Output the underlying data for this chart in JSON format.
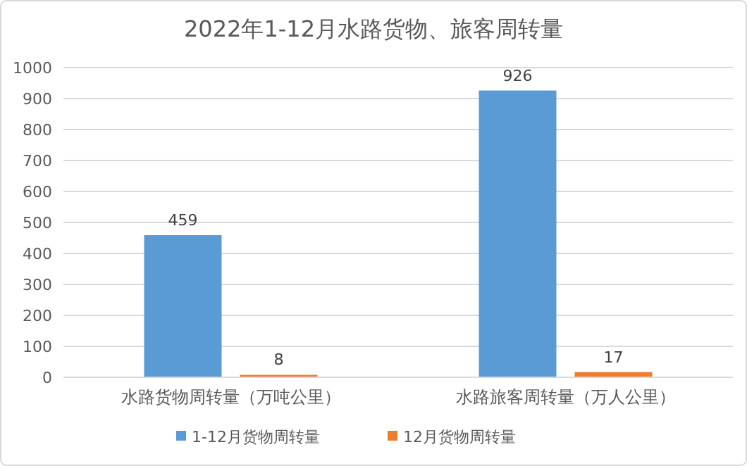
{
  "chart_data": {
    "type": "bar",
    "title": "2022年1-12月水路货物、旅客周转量",
    "categories": [
      "水路货物周转量（万吨公里）",
      "水路旅客周转量（万人公里）"
    ],
    "series": [
      {
        "name": "1-12月货物周转量",
        "color": "#5b9bd5",
        "values": [
          459,
          926
        ]
      },
      {
        "name": "12月货物周转量",
        "color": "#ed7d31",
        "values": [
          8,
          17
        ]
      }
    ],
    "ylim": [
      0,
      1000
    ],
    "yticks": [
      0,
      100,
      200,
      300,
      400,
      500,
      600,
      700,
      800,
      900,
      1000
    ],
    "grid": "y",
    "legend": "bottom",
    "data_labels": true
  }
}
